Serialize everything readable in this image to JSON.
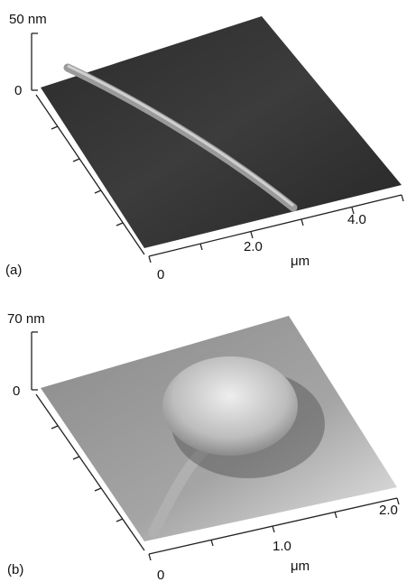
{
  "panels": [
    {
      "label": "(a)",
      "z_top": "50 nm",
      "z_zero": "0",
      "x_zero": "0",
      "x_ticks": [
        "2.0",
        "4.0"
      ],
      "x_unit": "μm"
    },
    {
      "label": "(b)",
      "z_top": "70 nm",
      "z_zero": "0",
      "x_zero": "0",
      "x_ticks": [
        "1.0",
        "2.0"
      ],
      "x_unit": "μm"
    }
  ]
}
